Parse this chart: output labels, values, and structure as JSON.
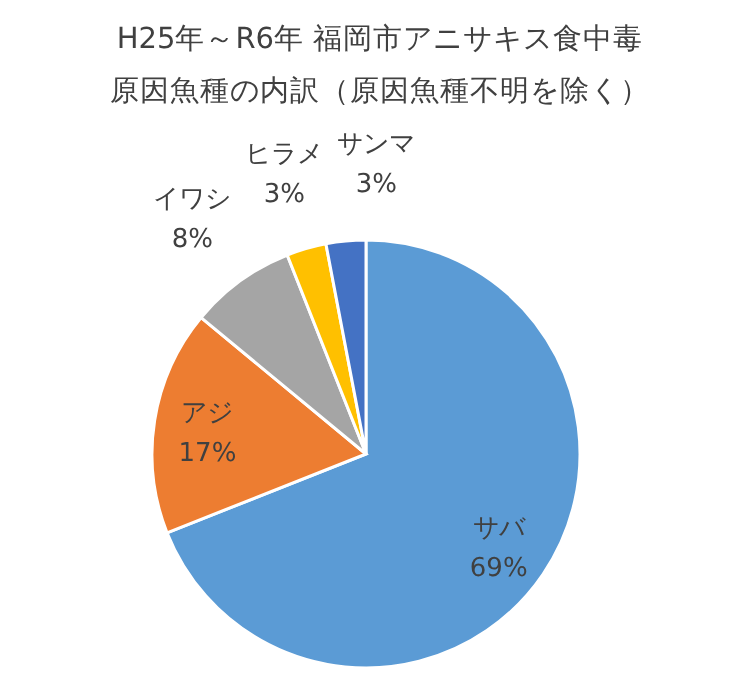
{
  "chart_data": {
    "type": "pie",
    "title": "H25年～R6年  福岡市アニサキス食中毒",
    "subtitle": "原因魚種の内訳（原因魚種不明を除く）",
    "categories": [
      "サバ",
      "アジ",
      "イワシ",
      "ヒラメ",
      "サンマ"
    ],
    "values": [
      69,
      17,
      8,
      3,
      3
    ],
    "value_labels": [
      "69%",
      "17%",
      "8%",
      "3%",
      "3%"
    ],
    "colors": [
      "#5b9bd5",
      "#ed7d31",
      "#a5a5a5",
      "#ffc000",
      "#4472c4"
    ]
  }
}
